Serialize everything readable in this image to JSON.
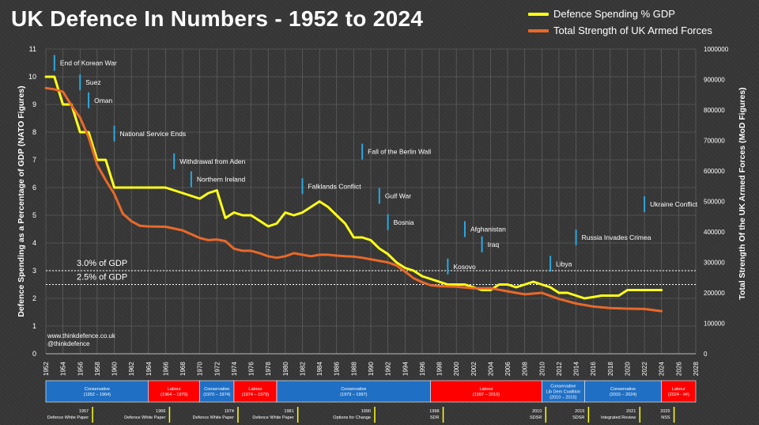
{
  "title": "UK Defence In Numbers - 1952 to 2024",
  "legend": {
    "gdp_label": "Defence Spending % GDP",
    "forces_label": "Total Strength of UK Armed Forces"
  },
  "credits": {
    "site": "www.thinkdefence.co.uk",
    "handle": "@thinkdefence"
  },
  "colors": {
    "gdp": "#ffff1a",
    "forces": "#e8692a",
    "conservative": "#1f6fc4",
    "labour": "#ff0000",
    "coalition": "#1f6fc4",
    "event_marker": "#2aa8e0"
  },
  "chart_data": {
    "type": "line",
    "ylabel": "Defence Spending as a Percentage of GDP  (NATO Figures)",
    "y2label": "Total Strength Of the UK Armed Forces (MoD Figures)",
    "xlim": [
      1952,
      2028
    ],
    "ylim": [
      0,
      11
    ],
    "y2lim": [
      0,
      1000000
    ],
    "x_ticks": [
      1952,
      1954,
      1956,
      1958,
      1960,
      1962,
      1964,
      1966,
      1968,
      1970,
      1972,
      1974,
      1976,
      1978,
      1980,
      1982,
      1984,
      1986,
      1988,
      1990,
      1992,
      1994,
      1996,
      1998,
      2000,
      2002,
      2004,
      2006,
      2008,
      2010,
      2012,
      2014,
      2016,
      2018,
      2020,
      2022,
      2024,
      2026,
      2028
    ],
    "y_ticks": [
      0,
      1,
      2,
      3,
      4,
      5,
      6,
      7,
      8,
      9,
      10,
      11
    ],
    "y2_ticks": [
      0,
      100000,
      200000,
      300000,
      400000,
      500000,
      600000,
      700000,
      800000,
      900000,
      1000000
    ],
    "reference_lines": [
      {
        "value": 3.0,
        "label": "3.0% of GDP"
      },
      {
        "value": 2.5,
        "label": "2.5% of GDP"
      }
    ],
    "series": [
      {
        "name": "Defence Spending % GDP",
        "axis": "left",
        "x": [
          1952,
          1953,
          1954,
          1955,
          1956,
          1957,
          1958,
          1959,
          1960,
          1962,
          1964,
          1966,
          1968,
          1970,
          1971,
          1972,
          1973,
          1974,
          1975,
          1976,
          1977,
          1978,
          1979,
          1980,
          1981,
          1982,
          1983,
          1984,
          1985,
          1986,
          1987,
          1988,
          1989,
          1990,
          1991,
          1992,
          1993,
          1994,
          1995,
          1996,
          1997,
          1998,
          1999,
          2000,
          2001,
          2002,
          2003,
          2004,
          2005,
          2006,
          2007,
          2008,
          2009,
          2010,
          2011,
          2012,
          2013,
          2014,
          2015,
          2016,
          2017,
          2018,
          2019,
          2020,
          2021,
          2022,
          2023,
          2024
        ],
        "values": [
          10,
          10,
          9,
          9,
          8,
          8,
          7,
          7,
          6,
          6,
          6,
          6,
          5.8,
          5.6,
          5.8,
          5.9,
          4.9,
          5.1,
          5,
          5,
          4.8,
          4.6,
          4.7,
          5.1,
          5,
          5.1,
          5.3,
          5.5,
          5.3,
          5,
          4.7,
          4.2,
          4.2,
          4.1,
          3.8,
          3.6,
          3.3,
          3.1,
          3,
          2.8,
          2.7,
          2.6,
          2.5,
          2.5,
          2.5,
          2.4,
          2.3,
          2.3,
          2.5,
          2.5,
          2.4,
          2.5,
          2.6,
          2.5,
          2.4,
          2.2,
          2.2,
          2.1,
          2,
          2.05,
          2.1,
          2.1,
          2.1,
          2.3,
          2.3,
          2.3,
          2.3,
          2.3
        ]
      },
      {
        "name": "Total Strength of UK Armed Forces",
        "axis": "right",
        "x": [
          1952,
          1953,
          1954,
          1955,
          1956,
          1957,
          1958,
          1959,
          1960,
          1961,
          1962,
          1963,
          1964,
          1966,
          1968,
          1970,
          1971,
          1972,
          1973,
          1974,
          1975,
          1976,
          1977,
          1978,
          1979,
          1980,
          1981,
          1982,
          1983,
          1984,
          1985,
          1986,
          1987,
          1988,
          1989,
          1990,
          1991,
          1992,
          1993,
          1994,
          1995,
          1996,
          1997,
          1998,
          2000,
          2002,
          2004,
          2006,
          2008,
          2010,
          2012,
          2014,
          2016,
          2018,
          2020,
          2022,
          2024
        ],
        "values": [
          872000,
          868000,
          860000,
          815000,
          775000,
          710000,
          620000,
          570000,
          525000,
          460000,
          435000,
          420000,
          418000,
          417000,
          405000,
          380000,
          373000,
          375000,
          370000,
          345000,
          338000,
          338000,
          330000,
          320000,
          315000,
          320000,
          330000,
          325000,
          320000,
          325000,
          325000,
          322000,
          320000,
          319000,
          315000,
          310000,
          305000,
          300000,
          290000,
          270000,
          248000,
          235000,
          225000,
          222000,
          220000,
          215000,
          215000,
          205000,
          195000,
          200000,
          180000,
          165000,
          155000,
          150000,
          148000,
          147000,
          140000
        ]
      }
    ],
    "events": [
      {
        "year": 1953,
        "label": "End of Korean War",
        "y": 10.5
      },
      {
        "year": 1956,
        "label": "Suez",
        "y": 9.8
      },
      {
        "year": 1957,
        "label": "Oman",
        "y": 9.15
      },
      {
        "year": 1960,
        "label": "National Service Ends",
        "y": 7.95
      },
      {
        "year": 1967,
        "label": "Withdrawal from Aden",
        "y": 6.95
      },
      {
        "year": 1969,
        "label": "Northern Ireland",
        "y": 6.3
      },
      {
        "year": 1982,
        "label": "Falklands Conflict",
        "y": 6.05
      },
      {
        "year": 1989,
        "label": "Fall of the Berlin Wall",
        "y": 7.3
      },
      {
        "year": 1991,
        "label": "Gulf War",
        "y": 5.7
      },
      {
        "year": 1992,
        "label": "Bosnia",
        "y": 4.75
      },
      {
        "year": 1999,
        "label": "Kosovo",
        "y": 3.15
      },
      {
        "year": 2001,
        "label": "Afghanistan",
        "y": 4.5
      },
      {
        "year": 2003,
        "label": "Iraq",
        "y": 3.95
      },
      {
        "year": 2011,
        "label": "Libya",
        "y": 3.25
      },
      {
        "year": 2014,
        "label": "Russia Invades Crimea",
        "y": 4.2
      },
      {
        "year": 2022,
        "label": "Ukraine Conflict",
        "y": 5.4
      }
    ],
    "governments": [
      {
        "party": "Conservative",
        "years": "(1952 – 1964)",
        "start": 1952,
        "end": 1964
      },
      {
        "party": "Labour",
        "years": "(1964 – 1970)",
        "start": 1964,
        "end": 1970
      },
      {
        "party": "Conservative",
        "years": "(1970 – 1974)",
        "start": 1970,
        "end": 1974
      },
      {
        "party": "Labour",
        "years": "(1974 – 1979)",
        "start": 1974,
        "end": 1979
      },
      {
        "party": "Conservative",
        "years": "(1979 – 1997)",
        "start": 1979,
        "end": 1997
      },
      {
        "party": "Labour",
        "years": "(1997 – 2010)",
        "start": 1997,
        "end": 2010
      },
      {
        "party": "Conservative\nLib Dem Coalition",
        "years": "(2010 – 2015)",
        "start": 2010,
        "end": 2015
      },
      {
        "party": "Conservative",
        "years": "(2015 – 2024)",
        "start": 2015,
        "end": 2024
      },
      {
        "party": "Labour",
        "years": "(2024 - ##)",
        "start": 2024,
        "end": 2028
      }
    ],
    "reviews": [
      {
        "year": 1957,
        "label": "Defence White Paper"
      },
      {
        "year": 1966,
        "label": "Defence White Paper"
      },
      {
        "year": 1974,
        "label": "Defence White Paper"
      },
      {
        "year": 1981,
        "label": "Defence White Paper"
      },
      {
        "year": 1990,
        "label": "Options for Change"
      },
      {
        "year": 1998,
        "label": "SDR"
      },
      {
        "year": 2010,
        "label": "SDSR"
      },
      {
        "year": 2015,
        "label": "SDSR"
      },
      {
        "year": 2021,
        "label": "Integrated Review"
      },
      {
        "year": 2025,
        "label": "NSS"
      }
    ]
  }
}
